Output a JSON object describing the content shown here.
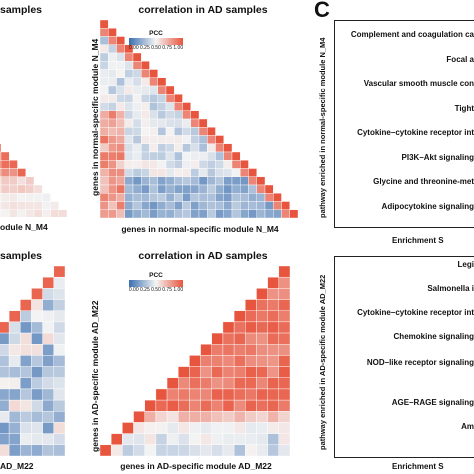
{
  "figure": {
    "panel_c_letter": "C"
  },
  "top_left": {
    "title_fragment": "samples",
    "xlabel_fragment": "odule N_M4"
  },
  "top_middle": {
    "title": "correlation in AD samples",
    "xlabel": "genes in normal-specific module N_M4",
    "ylabel": "genes in normal-specific module N_M4",
    "legend_title": "PCC",
    "legend_ticks": "0.00 0.25 0.50 0.75 1.00"
  },
  "bottom_left": {
    "title_fragment": "samples",
    "xlabel_fragment": "AD_M22"
  },
  "bottom_middle": {
    "title": "correlation in AD samples",
    "xlabel": "genes in AD-specific module AD_M22",
    "ylabel": "genes in AD-specific module AD_M22",
    "legend_title": "PCC",
    "legend_ticks": "0.00 0.25 0.50 0.75 1.00"
  },
  "top_right": {
    "ylabel": "pathway enriched in normal-specific module N_M4",
    "xlabel_fragment": "Enrichment S",
    "pathways": [
      "Complement and coagulation ca",
      "Focal a",
      "Vascular smooth muscle con",
      "Tight",
      "Cytokine–cytokine receptor int",
      "PI3K–Akt signaling",
      "Glycine and threonine-met",
      "Adipocytokine signaling"
    ]
  },
  "bottom_right": {
    "ylabel": "pathway enriched in AD-specific module AD_M22",
    "xlabel_fragment": "Enrichment S",
    "pathways": [
      "Legi",
      "Salmonella i",
      "Cytokine–cytokine receptor int",
      "Chemokine signaling",
      "NOD–like receptor signaling",
      "AGE–RAGE signaling",
      "Am"
    ]
  },
  "colors": {
    "low": "#3b6fb0",
    "mid": "#f4f4f4",
    "high": "#e8553e",
    "grid_line": "#ffffff"
  }
}
